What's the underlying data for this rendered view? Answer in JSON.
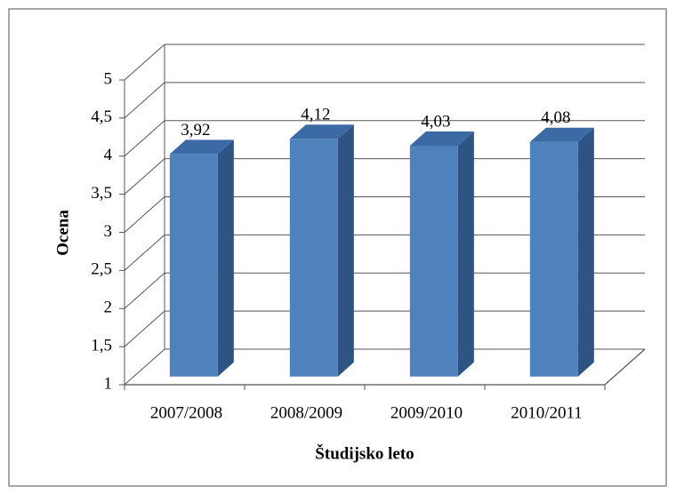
{
  "chart_data": {
    "type": "bar3d",
    "xlabel": "Študijsko leto",
    "ylabel": "Ocena",
    "categories": [
      "2007/2008",
      "2008/2009",
      "2009/2010",
      "2010/2011"
    ],
    "values": [
      3.92,
      4.12,
      4.03,
      4.08
    ],
    "value_labels": [
      "3,92",
      "4,12",
      "4,03",
      "4,08"
    ],
    "color": "#4f81bd",
    "ylim": [
      1,
      5
    ],
    "yticks": [
      1,
      {
        "value": 1.5,
        "label": "1,5"
      },
      2,
      {
        "value": 2.5,
        "label": "2,5"
      },
      3,
      {
        "value": 3.5,
        "label": "3,5"
      },
      4,
      {
        "value": 4.5,
        "label": "4,5"
      },
      5
    ],
    "grid": true
  }
}
